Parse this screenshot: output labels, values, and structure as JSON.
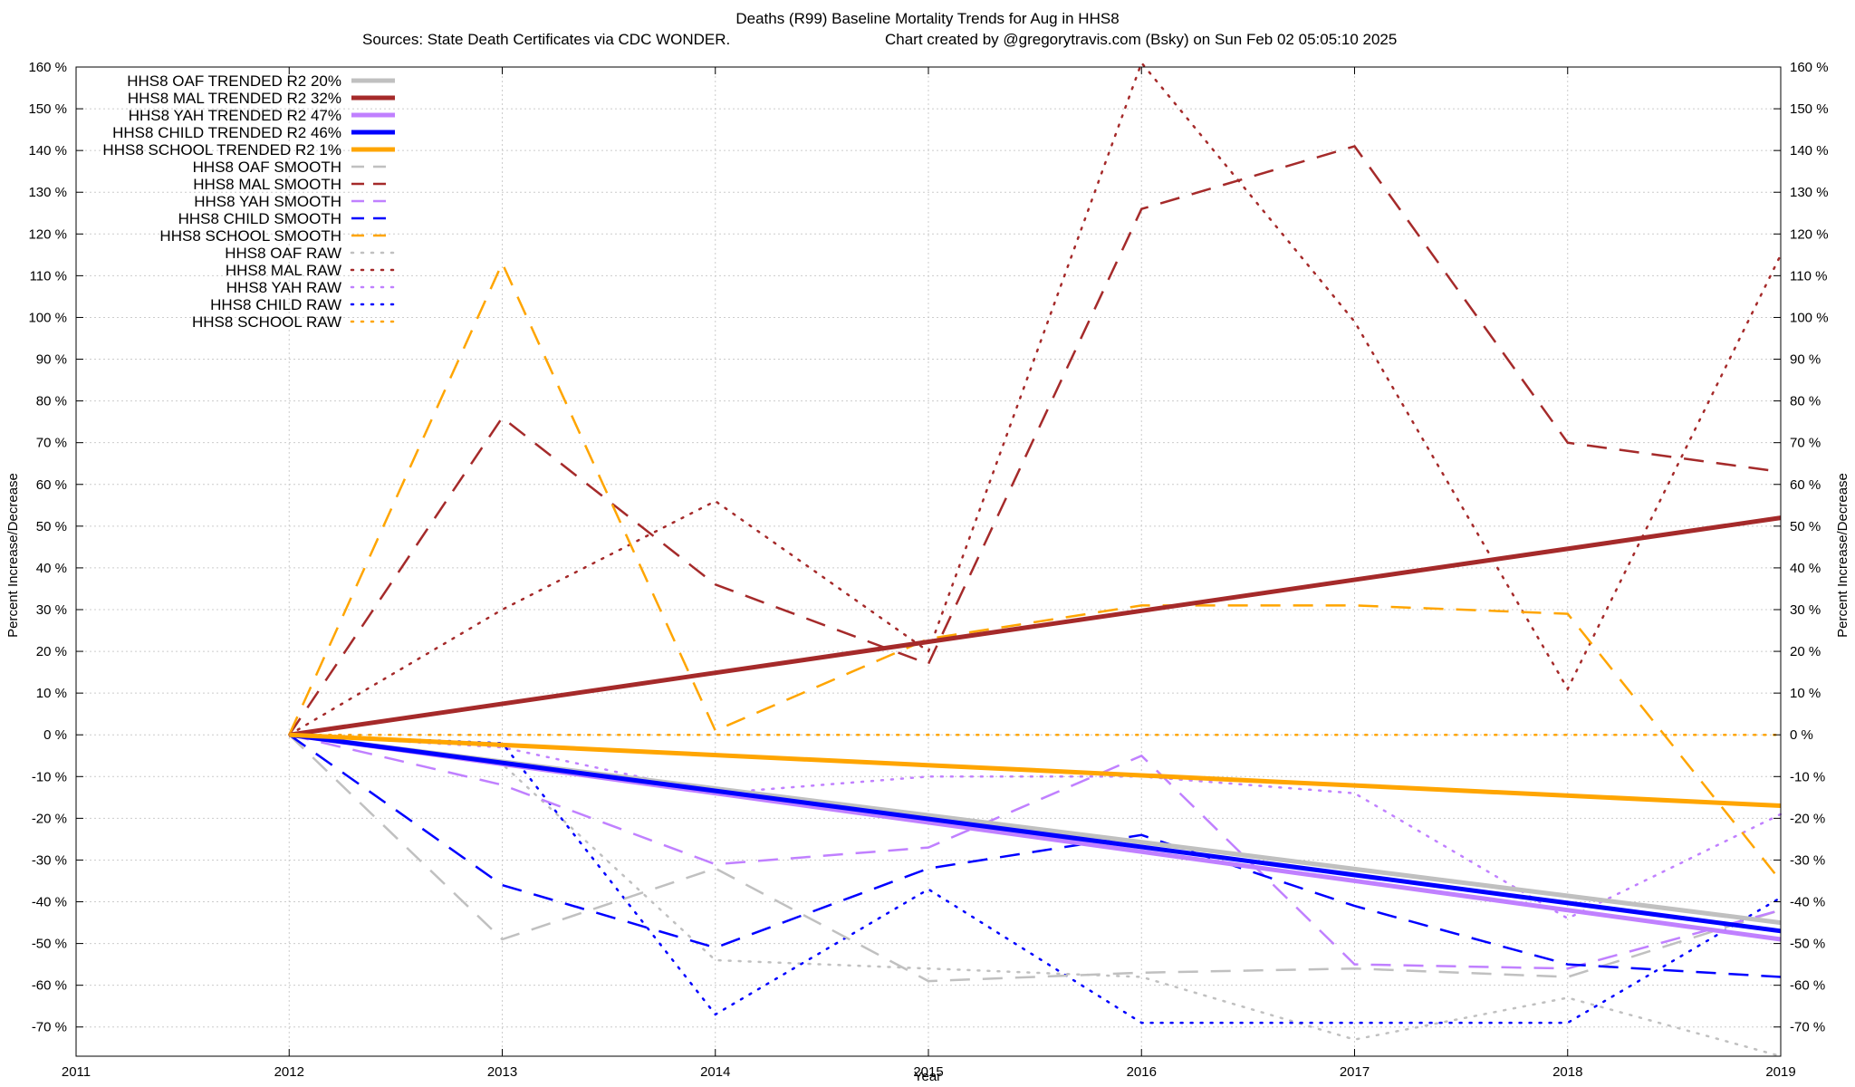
{
  "chart_data": {
    "type": "line",
    "title": "Deaths (R99)  Baseline Mortality Trends for Aug in HHS8",
    "subtitle_left": "Sources: State Death Certificates via CDC WONDER.",
    "subtitle_right": "Chart created by @gregorytravis.com (Bsky) on Sun Feb 02 05:05:10 2025",
    "xlabel": "Year",
    "ylabel_left": "Percent Increase/Decrease",
    "ylabel_right": "Percent Increase/Decrease",
    "xlim": [
      2011,
      2019
    ],
    "ylim": [
      -77,
      160
    ],
    "x_ticks": [
      "2011",
      "2012",
      "2013",
      "2014",
      "2015",
      "2016",
      "2017",
      "2018",
      "2019"
    ],
    "y_ticks": [
      "160 %",
      "150 %",
      "140 %",
      "130 %",
      "120 %",
      "110 %",
      "100 %",
      "90 %",
      "80 %",
      "70 %",
      "60 %",
      "50 %",
      "40 %",
      "30 %",
      "20 %",
      "10 %",
      "0 %",
      "-10 %",
      "-20 %",
      "-30 %",
      "-40 %",
      "-50 %",
      "-60 %",
      "-70 %"
    ],
    "y_tick_values": [
      160,
      150,
      140,
      130,
      120,
      110,
      100,
      90,
      80,
      70,
      60,
      50,
      40,
      30,
      20,
      10,
      0,
      -10,
      -20,
      -30,
      -40,
      -50,
      -60,
      -70
    ],
    "grid": true,
    "legend_position": "top-left",
    "series": [
      {
        "name": "HHS8 OAF TRENDED R2  20%",
        "style": "solid",
        "color": "#c0c0c0",
        "x": [
          2012,
          2019
        ],
        "y": [
          0,
          -45
        ]
      },
      {
        "name": "HHS8 MAL TRENDED R2  32%",
        "style": "solid",
        "color": "#a52a2a",
        "x": [
          2012,
          2019
        ],
        "y": [
          0,
          52
        ]
      },
      {
        "name": "HHS8 YAH TRENDED R2  47%",
        "style": "solid",
        "color": "#c080ff",
        "x": [
          2012,
          2019
        ],
        "y": [
          0,
          -49
        ]
      },
      {
        "name": "HHS8 CHILD TRENDED R2  46%",
        "style": "solid",
        "color": "#0000ff",
        "x": [
          2012,
          2019
        ],
        "y": [
          0,
          -47
        ]
      },
      {
        "name": "HHS8 SCHOOL TRENDED R2   1%",
        "style": "solid",
        "color": "#ffa500",
        "x": [
          2012,
          2019
        ],
        "y": [
          0,
          -17
        ]
      },
      {
        "name": "HHS8 OAF SMOOTH",
        "style": "dashed",
        "color": "#c0c0c0",
        "x": [
          2012,
          2013,
          2014,
          2015,
          2016,
          2017,
          2018,
          2019
        ],
        "y": [
          0,
          -49,
          -32,
          -59,
          -57,
          -56,
          -58,
          -42
        ]
      },
      {
        "name": "HHS8 MAL SMOOTH",
        "style": "dashed",
        "color": "#a52a2a",
        "x": [
          2012,
          2013,
          2014,
          2015,
          2016,
          2017,
          2018,
          2019
        ],
        "y": [
          0,
          76,
          36,
          17,
          126,
          141,
          70,
          63
        ]
      },
      {
        "name": "HHS8 YAH SMOOTH",
        "style": "dashed",
        "color": "#c080ff",
        "x": [
          2012,
          2013,
          2014,
          2015,
          2016,
          2017,
          2018,
          2019
        ],
        "y": [
          0,
          -12,
          -31,
          -27,
          -5,
          -55,
          -56,
          -42
        ]
      },
      {
        "name": "HHS8 CHILD SMOOTH",
        "style": "dashed",
        "color": "#0000ff",
        "x": [
          2012,
          2013,
          2014,
          2015,
          2016,
          2017,
          2018,
          2019
        ],
        "y": [
          0,
          -36,
          -51,
          -32,
          -24,
          -41,
          -55,
          -58
        ]
      },
      {
        "name": "HHS8 SCHOOL SMOOTH",
        "style": "dashed",
        "color": "#ffa500",
        "x": [
          2012,
          2013,
          2014,
          2015,
          2016,
          2017,
          2018,
          2019
        ],
        "y": [
          0,
          113,
          1,
          23,
          31,
          31,
          29,
          -35
        ]
      },
      {
        "name": "HHS8 OAF RAW",
        "style": "dotted",
        "color": "#c0c0c0",
        "x": [
          2012,
          2013,
          2014,
          2015,
          2016,
          2017,
          2018,
          2019
        ],
        "y": [
          0,
          -7,
          -54,
          -56,
          -58,
          -73,
          -63,
          -77
        ]
      },
      {
        "name": "HHS8 MAL RAW",
        "style": "dotted",
        "color": "#a52a2a",
        "x": [
          2012,
          2013,
          2014,
          2015,
          2016,
          2017,
          2018,
          2019
        ],
        "y": [
          0,
          30,
          56,
          20,
          161,
          99,
          11,
          115
        ]
      },
      {
        "name": "HHS8 YAH RAW",
        "style": "dotted",
        "color": "#c080ff",
        "x": [
          2012,
          2013,
          2014,
          2015,
          2016,
          2017,
          2018,
          2019
        ],
        "y": [
          0,
          -3,
          -14,
          -10,
          -10,
          -14,
          -44,
          -19
        ]
      },
      {
        "name": "HHS8 CHILD RAW",
        "style": "dotted",
        "color": "#0000ff",
        "x": [
          2012,
          2013,
          2014,
          2015,
          2016,
          2017,
          2018,
          2019
        ],
        "y": [
          0,
          -2,
          -67,
          -37,
          -69,
          -69,
          -69,
          -39
        ]
      },
      {
        "name": "HHS8 SCHOOL RAW",
        "style": "dotted",
        "color": "#ffa500",
        "x": [
          2012,
          2013,
          2014,
          2015,
          2016,
          2017,
          2018,
          2019
        ],
        "y": [
          0,
          0,
          0,
          0,
          0,
          0,
          0,
          0
        ]
      }
    ]
  }
}
